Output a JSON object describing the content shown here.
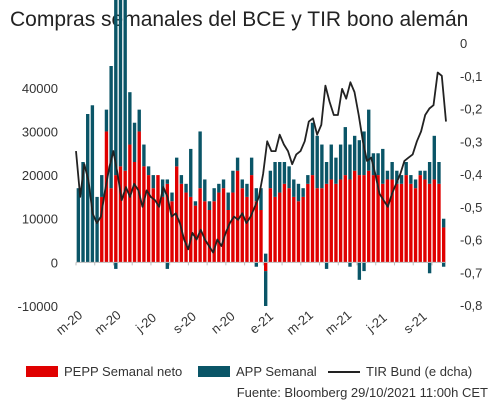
{
  "title": "Compras semanales del BCE y TIR bono alemán",
  "source": "Fuente: Bloomberg 29/10/2021 11:00h CET",
  "colors": {
    "pepp": "#e00000",
    "app": "#0a5567",
    "tir": "#222222"
  },
  "chart_data": {
    "type": "bar",
    "title": "Compras semanales del BCE y TIR bono alemán",
    "x_tick_labels": [
      "m-20",
      "m-20",
      "j-20",
      "s-20",
      "n-20",
      "e-21",
      "m-21",
      "m-21",
      "j-21",
      "s-21"
    ],
    "y_left": {
      "ticks": [
        "-10000",
        "0",
        "10000",
        "20000",
        "30000",
        "40000"
      ],
      "range": [
        -10000,
        45000
      ]
    },
    "y_right": {
      "ticks": [
        "-0,8",
        "-0,7",
        "-0,6",
        "-0,5",
        "-0,4",
        "-0,3",
        "-0,2",
        "-0,1",
        "0"
      ],
      "range": [
        -0.8,
        0
      ]
    },
    "legend": {
      "placement": "bottom",
      "items": [
        "PEPP Semanal neto",
        "APP Semanal",
        "TIR Bund (e dcha)"
      ]
    },
    "series": [
      {
        "name": "PEPP Semanal neto",
        "axis": "left",
        "type": "bar",
        "values": [
          0,
          0,
          0,
          0,
          0,
          15000,
          30000,
          17000,
          20000,
          22000,
          21000,
          27000,
          23000,
          30000,
          22000,
          20000,
          17000,
          20000,
          15000,
          18000,
          14000,
          22000,
          18000,
          16000,
          15000,
          13000,
          17000,
          14000,
          12000,
          14000,
          16000,
          17000,
          12000,
          16000,
          21000,
          17000,
          15000,
          20000,
          14000,
          12000,
          -2000,
          17000,
          15000,
          16000,
          18000,
          17000,
          15000,
          14000,
          15000,
          18000,
          20000,
          17000,
          17000,
          18000,
          19000,
          18000,
          19000,
          20000,
          19000,
          21000,
          20000,
          20000,
          21000,
          20000,
          20000,
          18000,
          19000,
          19000,
          18000,
          18000,
          20000,
          18000,
          17000,
          20000,
          19000,
          18000,
          19000,
          18000,
          8000
        ]
      },
      {
        "name": "APP Semanal",
        "axis": "left",
        "type": "bar",
        "values": [
          17000,
          23000,
          34000,
          36000,
          15000,
          5000,
          5000,
          28000,
          45000,
          39000,
          40000,
          12000,
          9000,
          5000,
          5000,
          2000,
          3000,
          0,
          4000,
          1000,
          2000,
          2000,
          2000,
          2000,
          11000,
          1000,
          13000,
          5000,
          2000,
          3000,
          2000,
          2000,
          4000,
          5000,
          3000,
          2000,
          3000,
          4000,
          3000,
          5000,
          2000,
          4000,
          8000,
          7000,
          5000,
          5000,
          4000,
          4000,
          2000,
          2000,
          12000,
          12000,
          10000,
          5000,
          8000,
          6000,
          8000,
          11000,
          8000,
          8000,
          8000,
          10000,
          14000,
          5000,
          5000,
          8000,
          2000,
          4000,
          3000,
          2000,
          3000,
          2000,
          2000,
          1000,
          2000,
          5000,
          10000,
          5000,
          2000
        ],
        "negative_values": {
          "8": -1500,
          "19": -1500,
          "38": -1000,
          "40": -8000,
          "53": -1500,
          "58": -1000,
          "60": -4000,
          "61": -2000,
          "75": -2500,
          "78": -1000
        }
      },
      {
        "name": "TIR Bund (e dcha)",
        "axis": "right",
        "type": "line",
        "values": [
          -0.33,
          -0.47,
          -0.37,
          -0.42,
          -0.52,
          -0.55,
          -0.53,
          -0.45,
          -0.38,
          -0.33,
          -0.4,
          -0.48,
          -0.44,
          -0.47,
          -0.43,
          -0.45,
          -0.5,
          -0.45,
          -0.47,
          -0.48,
          -0.5,
          -0.44,
          -0.47,
          -0.53,
          -0.52,
          -0.55,
          -0.6,
          -0.63,
          -0.58,
          -0.6,
          -0.57,
          -0.6,
          -0.62,
          -0.64,
          -0.6,
          -0.62,
          -0.58,
          -0.55,
          -0.53,
          -0.54,
          -0.52,
          -0.55,
          -0.53,
          -0.5,
          -0.47,
          -0.4,
          -0.3,
          -0.33,
          -0.33,
          -0.28,
          -0.31,
          -0.33,
          -0.37,
          -0.34,
          -0.33,
          -0.3,
          -0.24,
          -0.23,
          -0.28,
          -0.25,
          -0.13,
          -0.18,
          -0.22,
          -0.22,
          -0.14,
          -0.17,
          -0.12,
          -0.15,
          -0.22,
          -0.3,
          -0.36,
          -0.35,
          -0.4,
          -0.46,
          -0.48,
          -0.5,
          -0.46,
          -0.43,
          -0.4,
          -0.36,
          -0.35,
          -0.34,
          -0.3,
          -0.27,
          -0.22,
          -0.2,
          -0.19,
          -0.09,
          -0.1,
          -0.24
        ]
      }
    ]
  }
}
